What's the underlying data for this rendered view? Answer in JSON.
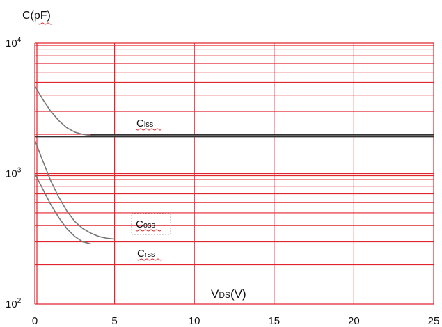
{
  "chart_data": {
    "type": "line",
    "ylabel": "C(pF)",
    "xlabel": "VDS(V)",
    "xlabel_main": "V",
    "xlabel_sub": "DS",
    "xlabel_unit": "(V)",
    "xlim": [
      0,
      25
    ],
    "ylim": [
      100,
      10000
    ],
    "yscale": "log",
    "grid": true,
    "x_ticks": [
      0,
      5,
      10,
      15,
      20,
      25
    ],
    "x_tick_labels": [
      "0",
      "5",
      "10",
      "15",
      "20",
      "25"
    ],
    "y_ticks": [
      100,
      1000,
      10000
    ],
    "y_tick_base": "10",
    "y_tick_exps": [
      "2",
      "3",
      "4"
    ],
    "colors": {
      "grid": "#e0252e",
      "curve": "#777777",
      "ciss_flat": "#333333"
    },
    "series": [
      {
        "name": "Ciss",
        "label_main": "C",
        "label_sub": "iss",
        "x": [
          0,
          0.5,
          1,
          1.5,
          2,
          2.5,
          3,
          3.5,
          4,
          5,
          10,
          15,
          20,
          25
        ],
        "y": [
          4700,
          3700,
          3000,
          2550,
          2250,
          2080,
          2000,
          1960,
          1950,
          1950,
          1950,
          1950,
          1950,
          1950
        ]
      },
      {
        "name": "Coss",
        "label_main": "C",
        "label_sub": "oss",
        "x": [
          0,
          0.5,
          1,
          1.5,
          2,
          2.5,
          3,
          3.5,
          4,
          4.5,
          5
        ],
        "y": [
          1800,
          1250,
          880,
          660,
          520,
          430,
          380,
          350,
          330,
          320,
          315
        ]
      },
      {
        "name": "Crss",
        "label_main": "C",
        "label_sub": "rss",
        "x": [
          0,
          0.5,
          1,
          1.5,
          2,
          2.5,
          3,
          3.5
        ],
        "y": [
          1000,
          760,
          580,
          460,
          380,
          330,
          300,
          290
        ]
      }
    ]
  }
}
